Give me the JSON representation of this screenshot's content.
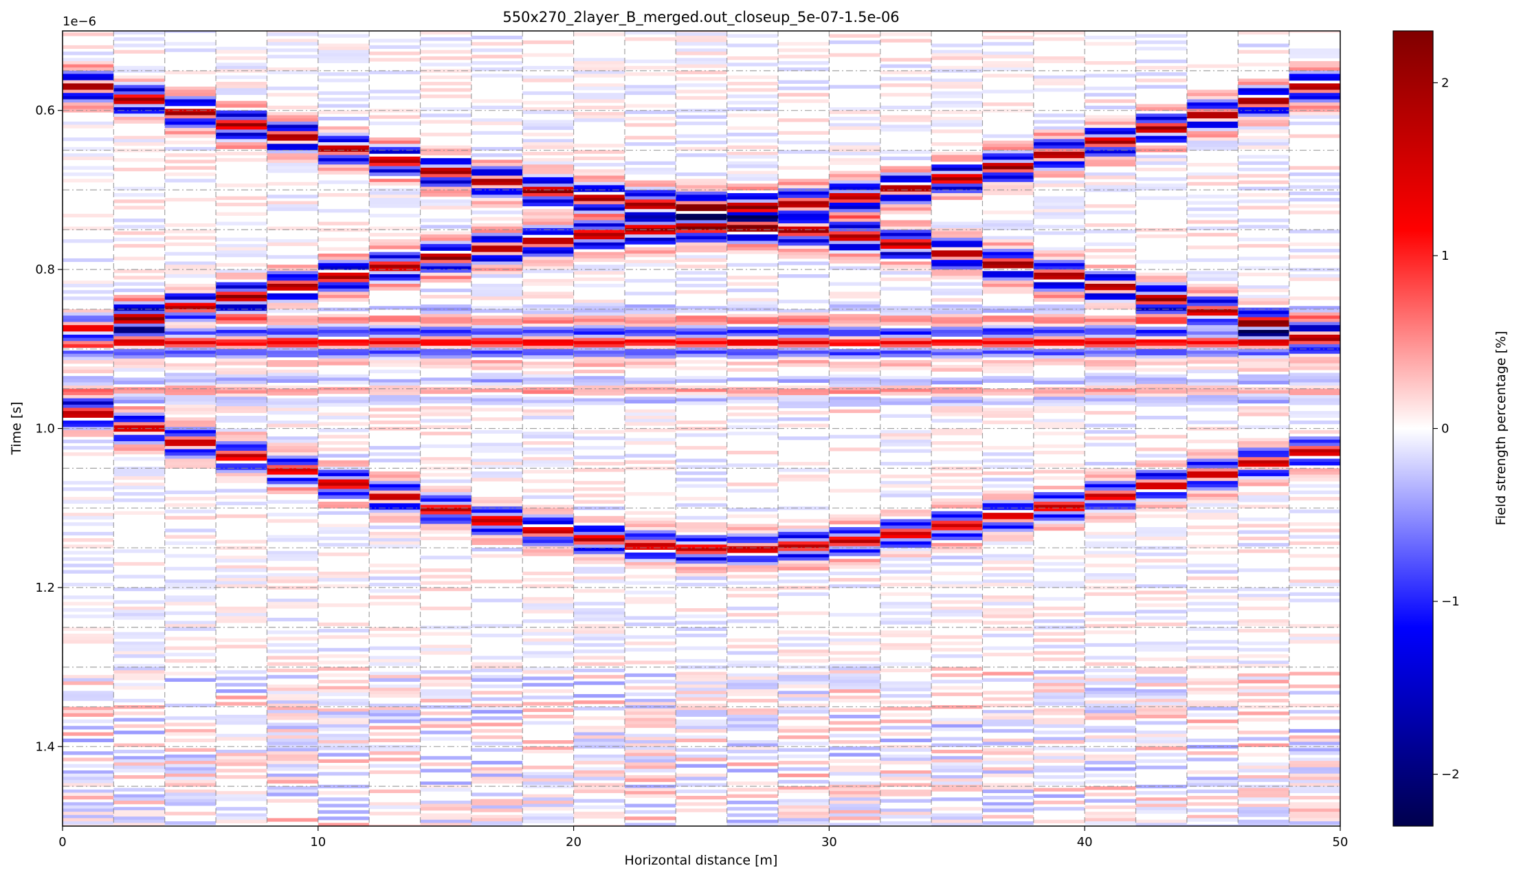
{
  "chart_data": {
    "type": "heatmap",
    "title": "550x270_2layer_B_merged.out_closeup_5e-07-1.5e-06",
    "xlabel": "Horizontal distance [m]",
    "ylabel": "Time [s]",
    "xlim": [
      0,
      50
    ],
    "ylim": [
      1.5e-06,
      5e-07
    ],
    "y_inverted": true,
    "y_offset_text": "1e−6",
    "x_ticks": [
      0,
      10,
      20,
      30,
      40,
      50
    ],
    "x_tick_labels": [
      "0",
      "10",
      "20",
      "30",
      "40",
      "50"
    ],
    "y_ticks": [
      0.6,
      0.8,
      1.0,
      1.2,
      1.4
    ],
    "y_tick_labels": [
      "0.6",
      "0.8",
      "1.0",
      "1.2",
      "1.4"
    ],
    "grid": "dashed vertical lines every 2 m, dash-dot horizontal lines every 0.05",
    "traces": 25,
    "trace_spacing_m": 2,
    "features": [
      {
        "name": "",
        "type": "hyperbola",
        "apex_x": 26,
        "apex_t": 0.72,
        "t_at_x0": 0.56,
        "t_at_x50": 0.56
      },
      {
        "name": "",
        "type": "hyperbola",
        "apex_x": 26,
        "apex_t": 0.745,
        "t_at_x0": 0.88,
        "t_at_x50": 0.89
      },
      {
        "name": "",
        "type": "horizontal",
        "t": 0.89
      },
      {
        "name": "",
        "type": "hyperbola",
        "apex_x": 26,
        "apex_t": 1.15,
        "t_at_x0": 0.97,
        "t_at_x50": 1.02
      }
    ],
    "colorbar": {
      "label": "Field strength percentage [%]",
      "min": -2.3,
      "max": 2.3,
      "ticks": [
        -2,
        -1,
        0,
        1,
        2
      ],
      "tick_labels": [
        "−2",
        "−1",
        "0",
        "1",
        "2"
      ],
      "colormap": "seismic",
      "colors": [
        "#00004d",
        "#0000ff",
        "#ffffff",
        "#ff0000",
        "#800000"
      ]
    }
  }
}
